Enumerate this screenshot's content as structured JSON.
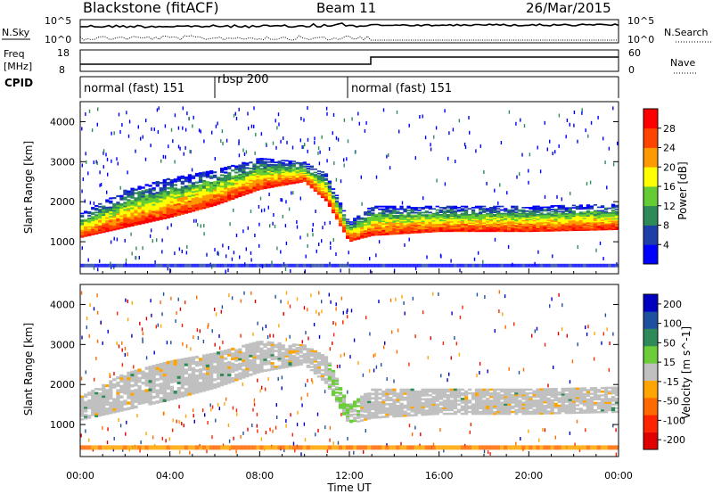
{
  "header": {
    "site": "Blackstone (fitACF)",
    "beam": "Beam 11",
    "date": "26/Mar/2015"
  },
  "noise_panel": {
    "left_label": "N.Sky",
    "right_label": "N.Search",
    "left_ticks": [
      "10^5",
      "10^0"
    ],
    "right_ticks": [
      "10^5",
      "10^0"
    ]
  },
  "freq_panel": {
    "left_label_line1": "Freq",
    "left_label_line2": "[MHz]",
    "right_label": "Nave",
    "left_ticks": [
      "18",
      "8"
    ],
    "right_ticks": [
      "60",
      "0"
    ]
  },
  "cpid": {
    "label": "CPID",
    "segments": [
      {
        "name": "normal (fast) 151",
        "start_hour": 0,
        "end_hour": 6
      },
      {
        "name": "rbsp 200",
        "start_hour": 6,
        "end_hour": 12
      },
      {
        "name": "normal (fast) 151",
        "start_hour": 12,
        "end_hour": 24
      }
    ]
  },
  "colors": {
    "power_scale": [
      "#0000ff",
      "#1f3fa8",
      "#2e8b57",
      "#66cc33",
      "#ffff00",
      "#ff9900",
      "#ff4400",
      "#ff0000"
    ],
    "velocity_scale": [
      "#0000c0",
      "#1e50a0",
      "#2e8b57",
      "#6ccc3a",
      "#c0c0c0",
      "#ffa500",
      "#ff6a00",
      "#ff2400",
      "#e00000"
    ]
  },
  "chart_data": [
    {
      "type": "heatmap",
      "title": "",
      "xlabel": "Time UT",
      "ylabel": "Slant Range [km]",
      "x_ticks": [
        "00:00",
        "04:00",
        "08:00",
        "12:00",
        "16:00",
        "20:00",
        "00:00"
      ],
      "xlim_hours": [
        0,
        24
      ],
      "y_ticks": [
        1000,
        2000,
        3000,
        4000
      ],
      "ylim": [
        200,
        4500
      ],
      "colorbar": {
        "label": "Power [dB]",
        "ticks": [
          4,
          8,
          12,
          16,
          20,
          24,
          28
        ],
        "range": [
          0,
          32
        ]
      },
      "echo_band": {
        "hours": [
          0,
          2,
          4,
          6,
          8,
          10,
          11,
          12,
          13,
          16,
          20,
          24
        ],
        "lower_edge_km": [
          1100,
          1350,
          1600,
          1900,
          2300,
          2500,
          2000,
          1000,
          1150,
          1250,
          1250,
          1300
        ],
        "upper_edge_km": [
          1700,
          2300,
          2600,
          2800,
          3100,
          3000,
          2700,
          1500,
          1900,
          1900,
          1900,
          1950
        ]
      }
    },
    {
      "type": "heatmap",
      "title": "",
      "xlabel": "Time UT",
      "ylabel": "Slant Range [km]",
      "x_ticks": [
        "00:00",
        "04:00",
        "08:00",
        "12:00",
        "16:00",
        "20:00",
        "00:00"
      ],
      "xlim_hours": [
        0,
        24
      ],
      "y_ticks": [
        1000,
        2000,
        3000,
        4000
      ],
      "ylim": [
        200,
        4500
      ],
      "colorbar": {
        "label": "Velocity [m s^-1]",
        "ticks": [
          200,
          100,
          50,
          15,
          -15,
          -50,
          -100,
          -200
        ],
        "range": [
          -250,
          250
        ]
      }
    }
  ]
}
